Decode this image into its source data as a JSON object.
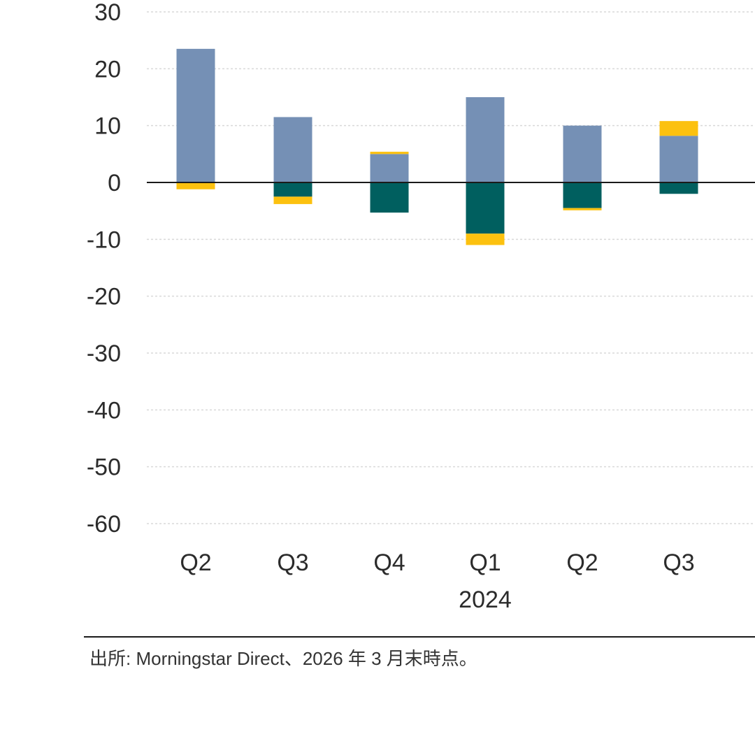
{
  "chart_data": {
    "type": "bar",
    "stacked": true,
    "categories": [
      "Q2",
      "Q3",
      "Q4",
      "Q1",
      "Q2",
      "Q3"
    ],
    "year_labels": [
      "",
      "",
      "",
      "2024",
      "",
      ""
    ],
    "yticks": [
      "30",
      "20",
      "10",
      "0",
      "-10",
      "-20",
      "-30",
      "-40",
      "-50",
      "-60"
    ],
    "ytick_values": [
      30,
      20,
      10,
      0,
      -10,
      -20,
      -30,
      -40,
      -50,
      -60
    ],
    "ylim": [
      -60,
      30
    ],
    "grid": true,
    "legend": "none visible",
    "series": [
      {
        "color": "#7590b5",
        "values": [
          23.5,
          11.5,
          5.0,
          15.0,
          10.0,
          8.2
        ]
      },
      {
        "color": "#005f5f",
        "values": [
          0,
          -2.5,
          -5.3,
          -9.0,
          -4.5,
          -2.0
        ]
      },
      {
        "color": "#fcc10f",
        "values": [
          -1.2,
          -1.3,
          0.4,
          -2.0,
          -0.4,
          2.6
        ]
      }
    ],
    "source_note": "出所: Morningstar Direct、2026 年 3 月末時点。"
  },
  "colors": {
    "grid": "#d9d9d9",
    "zero_line": "#1a1a1a",
    "text": "#2b2b2b"
  }
}
